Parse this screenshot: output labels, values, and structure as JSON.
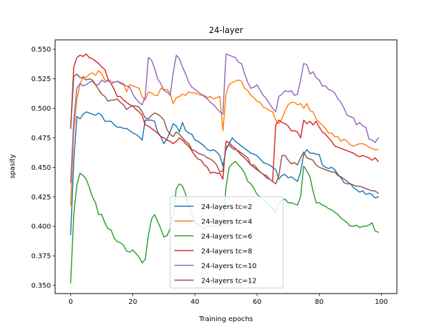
{
  "chart_data": {
    "type": "line",
    "title": "24-layer",
    "xlabel": "Training epochs",
    "ylabel": "spasity",
    "xlim": [
      -5,
      105
    ],
    "ylim": [
      0.343,
      0.558
    ],
    "xticks": [
      0,
      20,
      40,
      60,
      80,
      100
    ],
    "yticks": [
      0.35,
      0.375,
      0.4,
      0.425,
      0.45,
      0.475,
      0.5,
      0.525,
      0.55
    ],
    "ytick_labels": [
      "0.350",
      "0.375",
      "0.400",
      "0.425",
      "0.450",
      "0.475",
      "0.500",
      "0.525",
      "0.550"
    ],
    "grid": false,
    "legend_position": "lower-center",
    "x": [
      0,
      1,
      2,
      3,
      4,
      5,
      6,
      7,
      8,
      9,
      10,
      11,
      12,
      13,
      14,
      15,
      16,
      17,
      18,
      19,
      20,
      21,
      22,
      23,
      24,
      25,
      26,
      27,
      28,
      29,
      30,
      31,
      32,
      33,
      34,
      35,
      36,
      37,
      38,
      39,
      40,
      41,
      42,
      43,
      44,
      45,
      46,
      47,
      48,
      49,
      50,
      51,
      52,
      53,
      54,
      55,
      56,
      57,
      58,
      59,
      60,
      61,
      62,
      63,
      64,
      65,
      66,
      67,
      68,
      69,
      70,
      71,
      72,
      73,
      74,
      75,
      76,
      77,
      78,
      79,
      80,
      81,
      82,
      83,
      84,
      85,
      86,
      87,
      88,
      89,
      90,
      91,
      92,
      93,
      94,
      95,
      96,
      97,
      98,
      99
    ],
    "series": [
      {
        "name": "24-layers tc=2",
        "color": "#1f77b4",
        "values": [
          0.393,
          0.455,
          0.493,
          0.491,
          0.495,
          0.497,
          0.496,
          0.495,
          0.494,
          0.496,
          0.494,
          0.489,
          0.489,
          0.489,
          0.486,
          0.484,
          0.484,
          0.483,
          0.483,
          0.481,
          0.479,
          0.478,
          0.476,
          0.473,
          0.49,
          0.49,
          0.49,
          0.489,
          0.48,
          0.476,
          0.47,
          0.474,
          0.48,
          0.487,
          0.485,
          0.48,
          0.488,
          0.481,
          0.479,
          0.478,
          0.473,
          0.472,
          0.47,
          0.468,
          0.465,
          0.464,
          0.465,
          0.463,
          0.46,
          0.451,
          0.465,
          0.47,
          0.475,
          0.472,
          0.47,
          0.468,
          0.466,
          0.464,
          0.462,
          0.461,
          0.46,
          0.457,
          0.454,
          0.453,
          0.452,
          0.45,
          0.448,
          0.44,
          0.443,
          0.444,
          0.441,
          0.442,
          0.44,
          0.438,
          0.446,
          0.461,
          0.465,
          0.462,
          0.462,
          0.461,
          0.461,
          0.452,
          0.45,
          0.449,
          0.45,
          0.448,
          0.444,
          0.441,
          0.437,
          0.436,
          0.436,
          0.433,
          0.431,
          0.429,
          0.43,
          0.427,
          0.428,
          0.427,
          0.424,
          0.425
        ]
      },
      {
        "name": "24-layers tc=4",
        "color": "#ff7f0e",
        "values": [
          0.418,
          0.48,
          0.508,
          0.52,
          0.527,
          0.526,
          0.529,
          0.53,
          0.528,
          0.532,
          0.529,
          0.524,
          0.523,
          0.523,
          0.522,
          0.523,
          0.522,
          0.521,
          0.514,
          0.52,
          0.519,
          0.518,
          0.517,
          0.51,
          0.507,
          0.514,
          0.513,
          0.511,
          0.511,
          0.517,
          0.516,
          0.516,
          0.513,
          0.504,
          0.509,
          0.51,
          0.512,
          0.511,
          0.514,
          0.513,
          0.513,
          0.512,
          0.511,
          0.511,
          0.509,
          0.51,
          0.508,
          0.509,
          0.51,
          0.481,
          0.512,
          0.52,
          0.522,
          0.523,
          0.524,
          0.523,
          0.517,
          0.515,
          0.511,
          0.509,
          0.506,
          0.505,
          0.501,
          0.5,
          0.498,
          0.497,
          0.49,
          0.487,
          0.491,
          0.498,
          0.503,
          0.505,
          0.505,
          0.503,
          0.504,
          0.5,
          0.504,
          0.498,
          0.497,
          0.491,
          0.488,
          0.486,
          0.483,
          0.479,
          0.479,
          0.476,
          0.476,
          0.472,
          0.474,
          0.472,
          0.469,
          0.468,
          0.469,
          0.47,
          0.47,
          0.469,
          0.467,
          0.466,
          0.465,
          0.465
        ]
      },
      {
        "name": "24-layers tc=6",
        "color": "#2ca02c",
        "values": [
          0.352,
          0.41,
          0.435,
          0.445,
          0.443,
          0.44,
          0.433,
          0.425,
          0.42,
          0.41,
          0.41,
          0.403,
          0.398,
          0.397,
          0.39,
          0.387,
          0.386,
          0.384,
          0.379,
          0.378,
          0.38,
          0.377,
          0.374,
          0.369,
          0.372,
          0.392,
          0.406,
          0.41,
          0.404,
          0.398,
          0.391,
          0.392,
          0.398,
          0.41,
          0.432,
          0.436,
          0.434,
          0.427,
          0.417,
          0.411,
          0.403,
          0.402,
          0.4,
          0.398,
          0.4,
          0.4,
          0.4,
          0.4,
          0.4,
          0.4,
          0.433,
          0.45,
          0.453,
          0.455,
          0.452,
          0.449,
          0.445,
          0.438,
          0.436,
          0.432,
          0.427,
          0.425,
          0.423,
          0.42,
          0.417,
          0.415,
          0.412,
          0.42,
          0.422,
          0.423,
          0.42,
          0.42,
          0.419,
          0.418,
          0.425,
          0.451,
          0.447,
          0.442,
          0.43,
          0.42,
          0.42,
          0.418,
          0.417,
          0.415,
          0.414,
          0.412,
          0.41,
          0.407,
          0.405,
          0.403,
          0.4,
          0.4,
          0.401,
          0.399,
          0.4,
          0.4,
          0.401,
          0.403,
          0.396,
          0.395
        ]
      },
      {
        "name": "24-layers tc=8",
        "color": "#d62728",
        "values": [
          0.483,
          0.535,
          0.543,
          0.545,
          0.544,
          0.546,
          0.543,
          0.542,
          0.54,
          0.538,
          0.535,
          0.533,
          0.525,
          0.521,
          0.516,
          0.51,
          0.51,
          0.507,
          0.505,
          0.503,
          0.502,
          0.499,
          0.497,
          0.494,
          0.486,
          0.485,
          0.483,
          0.481,
          0.479,
          0.476,
          0.475,
          0.473,
          0.472,
          0.47,
          0.472,
          0.475,
          0.473,
          0.47,
          0.468,
          0.464,
          0.46,
          0.457,
          0.456,
          0.452,
          0.45,
          0.445,
          0.446,
          0.445,
          0.445,
          0.44,
          0.472,
          0.471,
          0.468,
          0.466,
          0.463,
          0.46,
          0.458,
          0.455,
          0.452,
          0.45,
          0.448,
          0.446,
          0.444,
          0.441,
          0.44,
          0.438,
          0.486,
          0.49,
          0.488,
          0.487,
          0.485,
          0.481,
          0.481,
          0.48,
          0.475,
          0.49,
          0.487,
          0.489,
          0.486,
          0.489,
          0.484,
          0.48,
          0.478,
          0.475,
          0.472,
          0.468,
          0.467,
          0.466,
          0.465,
          0.464,
          0.463,
          0.462,
          0.46,
          0.459,
          0.46,
          0.459,
          0.458,
          0.456,
          0.458,
          0.455
        ]
      },
      {
        "name": "24-layers tc=10",
        "color": "#9467bd",
        "values": [
          0.437,
          0.49,
          0.517,
          0.521,
          0.519,
          0.52,
          0.522,
          0.523,
          0.52,
          0.52,
          0.524,
          0.522,
          0.524,
          0.521,
          0.522,
          0.523,
          0.521,
          0.52,
          0.519,
          0.518,
          0.512,
          0.508,
          0.505,
          0.503,
          0.51,
          0.543,
          0.541,
          0.534,
          0.525,
          0.521,
          0.515,
          0.514,
          0.511,
          0.53,
          0.545,
          0.542,
          0.535,
          0.529,
          0.522,
          0.518,
          0.516,
          0.514,
          0.512,
          0.51,
          0.508,
          0.505,
          0.503,
          0.5,
          0.497,
          0.495,
          0.546,
          0.545,
          0.544,
          0.543,
          0.539,
          0.538,
          0.529,
          0.522,
          0.517,
          0.518,
          0.52,
          0.515,
          0.511,
          0.508,
          0.504,
          0.5,
          0.497,
          0.51,
          0.512,
          0.515,
          0.514,
          0.515,
          0.511,
          0.512,
          0.524,
          0.538,
          0.537,
          0.529,
          0.531,
          0.526,
          0.524,
          0.519,
          0.519,
          0.516,
          0.515,
          0.513,
          0.508,
          0.505,
          0.5,
          0.494,
          0.493,
          0.492,
          0.486,
          0.488,
          0.485,
          0.484,
          0.474,
          0.473,
          0.471,
          0.475
        ]
      },
      {
        "name": "24-layers tc=12",
        "color": "#8c564b",
        "values": [
          0.483,
          0.527,
          0.529,
          0.526,
          0.526,
          0.524,
          0.525,
          0.524,
          0.52,
          0.516,
          0.512,
          0.51,
          0.506,
          0.507,
          0.507,
          0.508,
          0.505,
          0.503,
          0.499,
          0.501,
          0.502,
          0.502,
          0.501,
          0.497,
          0.492,
          0.491,
          0.494,
          0.496,
          0.495,
          0.493,
          0.49,
          0.482,
          0.478,
          0.476,
          0.48,
          0.478,
          0.475,
          0.472,
          0.47,
          0.465,
          0.464,
          0.462,
          0.461,
          0.46,
          0.458,
          0.457,
          0.455,
          0.452,
          0.446,
          0.447,
          0.467,
          0.469,
          0.466,
          0.465,
          0.464,
          0.462,
          0.46,
          0.458,
          0.452,
          0.452,
          0.449,
          0.446,
          0.444,
          0.443,
          0.44,
          0.438,
          0.436,
          0.443,
          0.46,
          0.46,
          0.456,
          0.453,
          0.454,
          0.452,
          0.458,
          0.463,
          0.458,
          0.457,
          0.456,
          0.452,
          0.45,
          0.449,
          0.448,
          0.447,
          0.446,
          0.446,
          0.443,
          0.442,
          0.44,
          0.438,
          0.436,
          0.435,
          0.434,
          0.434,
          0.433,
          0.432,
          0.431,
          0.43,
          0.43,
          0.428
        ]
      }
    ]
  }
}
